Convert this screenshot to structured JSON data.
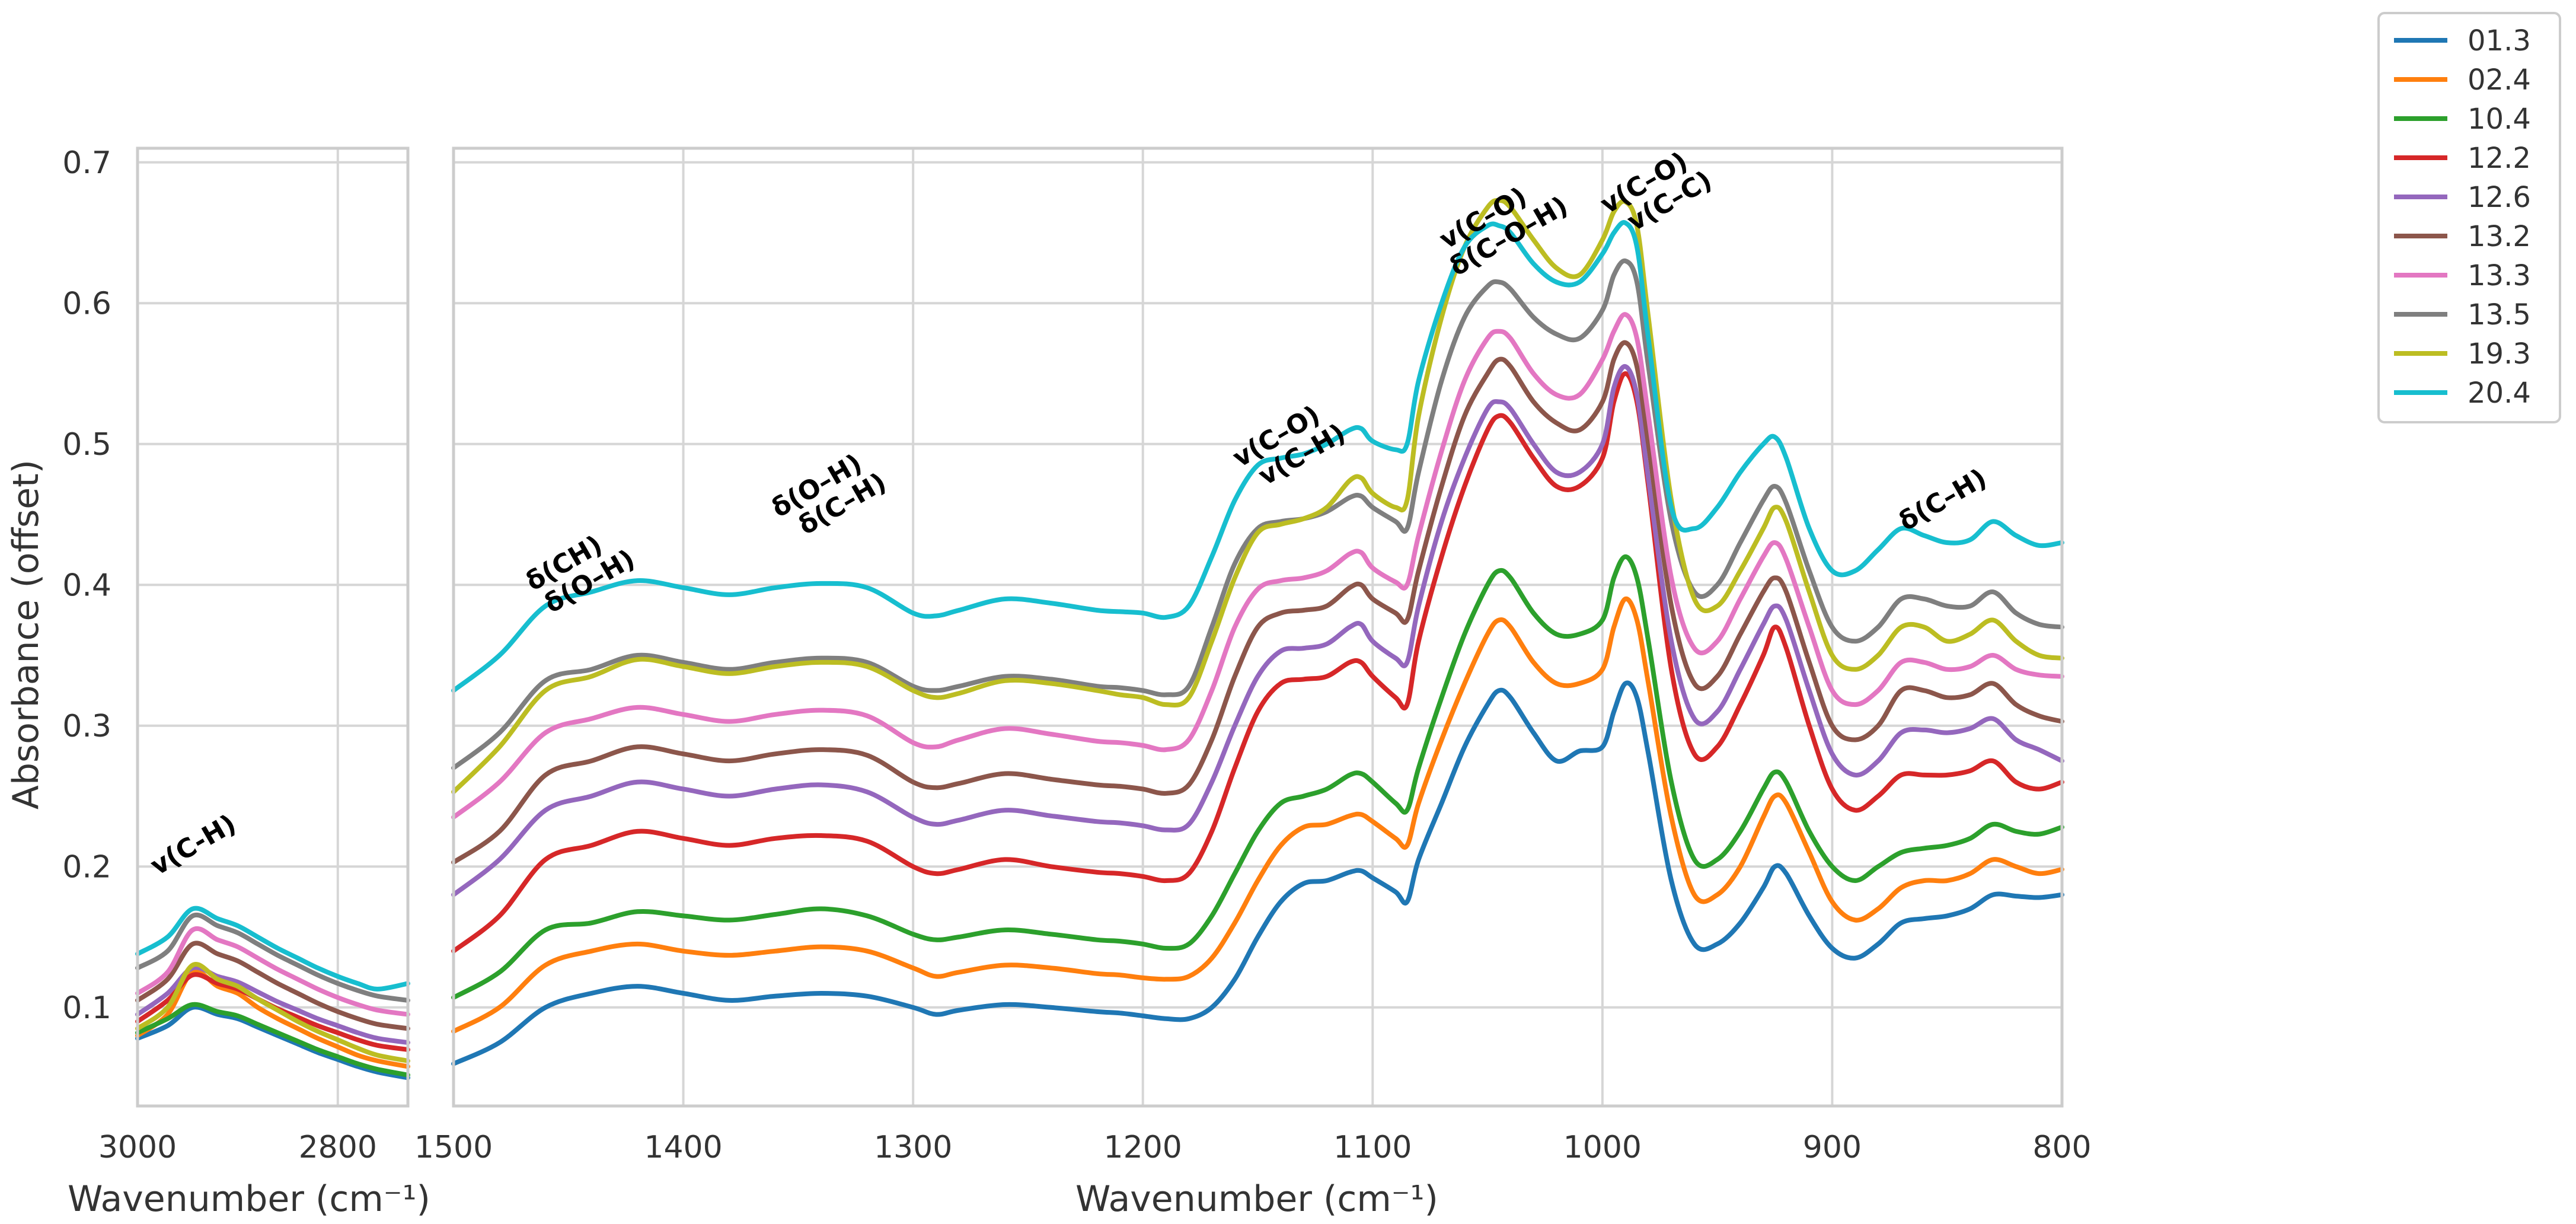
{
  "chart_data": {
    "type": "line",
    "ylabel": "Absorbance (offset)",
    "ylim": [
      0.03,
      0.71
    ],
    "yticks": [
      0.1,
      0.2,
      0.3,
      0.4,
      0.5,
      0.6,
      0.7
    ],
    "yticklabels": [
      "0.1",
      "0.2",
      "0.3",
      "0.4",
      "0.5",
      "0.6",
      "0.7"
    ],
    "grid": true,
    "legend_position": "outside-top-right",
    "panels": [
      {
        "id": "left",
        "xlabel": "Wavenumber (cm⁻¹)",
        "xlim": [
          3000,
          2730
        ],
        "xticks": [
          3000,
          2800
        ],
        "xticklabels": [
          "3000",
          "2800"
        ]
      },
      {
        "id": "right",
        "xlabel": "Wavenumber (cm⁻¹)",
        "xlim": [
          1500,
          800
        ],
        "xticks": [
          1500,
          1400,
          1300,
          1200,
          1100,
          1000,
          900,
          800
        ],
        "xticklabels": [
          "1500",
          "1400",
          "1300",
          "1200",
          "1100",
          "1000",
          "900",
          "800"
        ]
      }
    ],
    "left_x": [
      3000,
      2970,
      2945,
      2920,
      2900,
      2880,
      2860,
      2840,
      2820,
      2800,
      2780,
      2760,
      2730
    ],
    "right_x": [
      1500,
      1480,
      1460,
      1440,
      1420,
      1400,
      1380,
      1360,
      1340,
      1320,
      1300,
      1290,
      1280,
      1260,
      1240,
      1220,
      1210,
      1200,
      1190,
      1180,
      1170,
      1160,
      1150,
      1140,
      1130,
      1120,
      1110,
      1105,
      1100,
      1090,
      1085,
      1080,
      1070,
      1060,
      1050,
      1045,
      1040,
      1030,
      1020,
      1010,
      1000,
      995,
      990,
      985,
      980,
      970,
      960,
      950,
      940,
      930,
      925,
      920,
      910,
      900,
      890,
      880,
      870,
      860,
      850,
      840,
      830,
      820,
      810,
      800
    ],
    "series": [
      {
        "name": "01.3",
        "color": "#1f77b4",
        "left": [
          0.078,
          0.087,
          0.1,
          0.095,
          0.092,
          0.086,
          0.08,
          0.074,
          0.068,
          0.063,
          0.058,
          0.054,
          0.05
        ],
        "right": [
          0.06,
          0.075,
          0.1,
          0.11,
          0.115,
          0.11,
          0.105,
          0.108,
          0.11,
          0.108,
          0.1,
          0.095,
          0.098,
          0.102,
          0.1,
          0.097,
          0.096,
          0.094,
          0.092,
          0.092,
          0.1,
          0.12,
          0.15,
          0.175,
          0.188,
          0.19,
          0.196,
          0.197,
          0.192,
          0.182,
          0.175,
          0.205,
          0.245,
          0.285,
          0.315,
          0.325,
          0.32,
          0.295,
          0.275,
          0.282,
          0.285,
          0.31,
          0.33,
          0.32,
          0.28,
          0.19,
          0.145,
          0.145,
          0.16,
          0.185,
          0.2,
          0.195,
          0.165,
          0.142,
          0.135,
          0.145,
          0.16,
          0.163,
          0.165,
          0.17,
          0.18,
          0.179,
          0.178,
          0.18
        ]
      },
      {
        "name": "02.4",
        "color": "#ff7f0e",
        "left": [
          0.08,
          0.095,
          0.125,
          0.115,
          0.11,
          0.1,
          0.092,
          0.085,
          0.078,
          0.072,
          0.066,
          0.062,
          0.058
        ],
        "right": [
          0.083,
          0.1,
          0.13,
          0.14,
          0.145,
          0.14,
          0.137,
          0.14,
          0.143,
          0.14,
          0.128,
          0.122,
          0.125,
          0.13,
          0.128,
          0.124,
          0.123,
          0.121,
          0.12,
          0.122,
          0.135,
          0.16,
          0.19,
          0.215,
          0.228,
          0.23,
          0.236,
          0.237,
          0.232,
          0.22,
          0.215,
          0.245,
          0.29,
          0.33,
          0.365,
          0.375,
          0.37,
          0.345,
          0.33,
          0.33,
          0.34,
          0.37,
          0.39,
          0.375,
          0.33,
          0.235,
          0.18,
          0.18,
          0.2,
          0.235,
          0.25,
          0.245,
          0.21,
          0.175,
          0.162,
          0.17,
          0.185,
          0.19,
          0.19,
          0.195,
          0.205,
          0.2,
          0.195,
          0.198
        ]
      },
      {
        "name": "10.4",
        "color": "#2ca02c",
        "left": [
          0.082,
          0.092,
          0.102,
          0.097,
          0.094,
          0.088,
          0.082,
          0.076,
          0.07,
          0.065,
          0.06,
          0.056,
          0.052
        ],
        "right": [
          0.107,
          0.125,
          0.155,
          0.16,
          0.168,
          0.165,
          0.162,
          0.166,
          0.17,
          0.165,
          0.152,
          0.148,
          0.15,
          0.155,
          0.152,
          0.148,
          0.147,
          0.145,
          0.142,
          0.145,
          0.165,
          0.195,
          0.225,
          0.245,
          0.25,
          0.255,
          0.265,
          0.266,
          0.26,
          0.245,
          0.24,
          0.27,
          0.32,
          0.365,
          0.4,
          0.41,
          0.405,
          0.38,
          0.365,
          0.365,
          0.375,
          0.405,
          0.42,
          0.405,
          0.36,
          0.26,
          0.205,
          0.205,
          0.225,
          0.255,
          0.267,
          0.26,
          0.225,
          0.2,
          0.19,
          0.2,
          0.21,
          0.213,
          0.215,
          0.22,
          0.23,
          0.225,
          0.223,
          0.228
        ]
      },
      {
        "name": "12.2",
        "color": "#d62728",
        "left": [
          0.09,
          0.105,
          0.123,
          0.117,
          0.113,
          0.106,
          0.099,
          0.093,
          0.087,
          0.082,
          0.077,
          0.073,
          0.07
        ],
        "right": [
          0.14,
          0.165,
          0.205,
          0.215,
          0.225,
          0.22,
          0.215,
          0.22,
          0.222,
          0.218,
          0.2,
          0.195,
          0.198,
          0.205,
          0.2,
          0.196,
          0.195,
          0.193,
          0.19,
          0.195,
          0.225,
          0.27,
          0.31,
          0.33,
          0.333,
          0.335,
          0.345,
          0.345,
          0.335,
          0.32,
          0.315,
          0.36,
          0.42,
          0.47,
          0.51,
          0.52,
          0.515,
          0.49,
          0.47,
          0.47,
          0.49,
          0.53,
          0.55,
          0.53,
          0.47,
          0.34,
          0.28,
          0.285,
          0.315,
          0.35,
          0.37,
          0.355,
          0.3,
          0.255,
          0.24,
          0.25,
          0.265,
          0.265,
          0.265,
          0.268,
          0.275,
          0.26,
          0.255,
          0.26
        ]
      },
      {
        "name": "12.6",
        "color": "#9467bd",
        "left": [
          0.095,
          0.11,
          0.128,
          0.122,
          0.118,
          0.111,
          0.104,
          0.098,
          0.092,
          0.087,
          0.082,
          0.078,
          0.075
        ],
        "right": [
          0.18,
          0.205,
          0.24,
          0.25,
          0.26,
          0.255,
          0.25,
          0.255,
          0.258,
          0.253,
          0.235,
          0.23,
          0.233,
          0.24,
          0.236,
          0.232,
          0.231,
          0.229,
          0.226,
          0.23,
          0.26,
          0.3,
          0.335,
          0.353,
          0.355,
          0.358,
          0.37,
          0.372,
          0.36,
          0.348,
          0.345,
          0.385,
          0.445,
          0.49,
          0.525,
          0.53,
          0.525,
          0.5,
          0.48,
          0.48,
          0.5,
          0.54,
          0.555,
          0.535,
          0.475,
          0.36,
          0.305,
          0.31,
          0.34,
          0.372,
          0.385,
          0.375,
          0.325,
          0.28,
          0.265,
          0.275,
          0.295,
          0.297,
          0.295,
          0.298,
          0.305,
          0.29,
          0.283,
          0.275
        ]
      },
      {
        "name": "13.2",
        "color": "#8c564b",
        "left": [
          0.105,
          0.12,
          0.145,
          0.138,
          0.133,
          0.125,
          0.117,
          0.11,
          0.103,
          0.097,
          0.092,
          0.088,
          0.085
        ],
        "right": [
          0.203,
          0.225,
          0.265,
          0.275,
          0.285,
          0.28,
          0.275,
          0.28,
          0.283,
          0.279,
          0.26,
          0.256,
          0.259,
          0.266,
          0.262,
          0.258,
          0.257,
          0.255,
          0.252,
          0.258,
          0.29,
          0.335,
          0.37,
          0.38,
          0.382,
          0.385,
          0.398,
          0.4,
          0.39,
          0.38,
          0.375,
          0.41,
          0.47,
          0.52,
          0.55,
          0.56,
          0.555,
          0.53,
          0.515,
          0.51,
          0.53,
          0.56,
          0.572,
          0.555,
          0.5,
          0.385,
          0.33,
          0.335,
          0.365,
          0.395,
          0.405,
          0.395,
          0.345,
          0.3,
          0.29,
          0.3,
          0.325,
          0.325,
          0.32,
          0.322,
          0.33,
          0.315,
          0.307,
          0.303
        ]
      },
      {
        "name": "13.3",
        "color": "#e377c2",
        "left": [
          0.11,
          0.125,
          0.155,
          0.148,
          0.143,
          0.135,
          0.127,
          0.12,
          0.113,
          0.107,
          0.102,
          0.098,
          0.095
        ],
        "right": [
          0.235,
          0.26,
          0.295,
          0.305,
          0.313,
          0.308,
          0.303,
          0.308,
          0.311,
          0.307,
          0.288,
          0.285,
          0.29,
          0.298,
          0.294,
          0.289,
          0.288,
          0.286,
          0.283,
          0.29,
          0.325,
          0.37,
          0.397,
          0.403,
          0.405,
          0.41,
          0.422,
          0.423,
          0.412,
          0.402,
          0.4,
          0.435,
          0.495,
          0.545,
          0.575,
          0.58,
          0.575,
          0.55,
          0.535,
          0.535,
          0.56,
          0.58,
          0.592,
          0.575,
          0.52,
          0.405,
          0.355,
          0.36,
          0.39,
          0.42,
          0.43,
          0.418,
          0.37,
          0.325,
          0.315,
          0.325,
          0.345,
          0.345,
          0.34,
          0.342,
          0.35,
          0.34,
          0.336,
          0.335
        ]
      },
      {
        "name": "13.5",
        "color": "#7f7f7f",
        "left": [
          0.128,
          0.14,
          0.165,
          0.158,
          0.153,
          0.145,
          0.137,
          0.13,
          0.123,
          0.117,
          0.112,
          0.108,
          0.105
        ],
        "right": [
          0.27,
          0.295,
          0.332,
          0.34,
          0.35,
          0.345,
          0.34,
          0.345,
          0.348,
          0.345,
          0.328,
          0.325,
          0.328,
          0.335,
          0.333,
          0.328,
          0.327,
          0.325,
          0.322,
          0.328,
          0.37,
          0.415,
          0.44,
          0.445,
          0.447,
          0.452,
          0.462,
          0.463,
          0.455,
          0.445,
          0.44,
          0.48,
          0.545,
          0.59,
          0.612,
          0.615,
          0.61,
          0.59,
          0.578,
          0.575,
          0.595,
          0.62,
          0.63,
          0.615,
          0.555,
          0.445,
          0.395,
          0.4,
          0.43,
          0.46,
          0.47,
          0.458,
          0.41,
          0.37,
          0.36,
          0.37,
          0.39,
          0.39,
          0.385,
          0.385,
          0.395,
          0.38,
          0.372,
          0.37
        ]
      },
      {
        "name": "19.3",
        "color": "#bcbd22",
        "left": [
          0.085,
          0.1,
          0.13,
          0.12,
          0.115,
          0.106,
          0.098,
          0.09,
          0.083,
          0.077,
          0.071,
          0.066,
          0.062
        ],
        "right": [
          0.253,
          0.285,
          0.325,
          0.335,
          0.347,
          0.342,
          0.337,
          0.342,
          0.345,
          0.342,
          0.325,
          0.32,
          0.323,
          0.332,
          0.33,
          0.325,
          0.322,
          0.32,
          0.315,
          0.32,
          0.36,
          0.405,
          0.437,
          0.443,
          0.447,
          0.455,
          0.474,
          0.476,
          0.465,
          0.455,
          0.46,
          0.52,
          0.59,
          0.64,
          0.668,
          0.673,
          0.668,
          0.645,
          0.625,
          0.62,
          0.645,
          0.665,
          0.672,
          0.655,
          0.59,
          0.46,
          0.39,
          0.385,
          0.41,
          0.44,
          0.455,
          0.445,
          0.395,
          0.35,
          0.34,
          0.35,
          0.37,
          0.37,
          0.36,
          0.365,
          0.375,
          0.36,
          0.35,
          0.348
        ]
      },
      {
        "name": "20.4",
        "color": "#17becf",
        "left": [
          0.138,
          0.15,
          0.17,
          0.163,
          0.158,
          0.15,
          0.142,
          0.135,
          0.128,
          0.122,
          0.117,
          0.113,
          0.117
        ],
        "right": [
          0.325,
          0.35,
          0.385,
          0.395,
          0.403,
          0.398,
          0.393,
          0.398,
          0.401,
          0.398,
          0.38,
          0.378,
          0.382,
          0.39,
          0.387,
          0.382,
          0.381,
          0.38,
          0.377,
          0.385,
          0.42,
          0.46,
          0.485,
          0.49,
          0.493,
          0.5,
          0.51,
          0.511,
          0.502,
          0.496,
          0.5,
          0.545,
          0.6,
          0.64,
          0.655,
          0.655,
          0.65,
          0.628,
          0.615,
          0.615,
          0.635,
          0.65,
          0.657,
          0.64,
          0.575,
          0.455,
          0.44,
          0.455,
          0.48,
          0.5,
          0.505,
          0.49,
          0.44,
          0.41,
          0.41,
          0.425,
          0.44,
          0.435,
          0.43,
          0.432,
          0.445,
          0.435,
          0.428,
          0.43
        ]
      }
    ],
    "annotations": [
      {
        "panel": "left",
        "lines": [
          "v(C-H)"
        ],
        "x": 2940,
        "y": 0.21
      },
      {
        "panel": "right",
        "lines": [
          "δ(CH)",
          "δ(O–H)"
        ],
        "x": 1450,
        "y": 0.41
      },
      {
        "panel": "right",
        "lines": [
          "δ(O–H)",
          "δ(C–H)"
        ],
        "x": 1340,
        "y": 0.465
      },
      {
        "panel": "right",
        "lines": [
          "v(C–O)",
          "v(C–H)"
        ],
        "x": 1140,
        "y": 0.5
      },
      {
        "panel": "right",
        "lines": [
          "v(C–O)",
          "δ(C–O–H)"
        ],
        "x": 1050,
        "y": 0.655
      },
      {
        "panel": "right",
        "lines": [
          "v(C–O)",
          "v(C–C)"
        ],
        "x": 980,
        "y": 0.68
      },
      {
        "panel": "right",
        "lines": [
          "δ(C–H)"
        ],
        "x": 850,
        "y": 0.455
      }
    ]
  }
}
